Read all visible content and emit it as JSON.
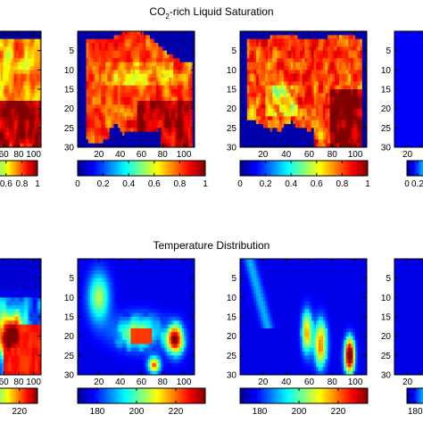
{
  "chart_data": [
    {
      "type": "heatmap",
      "title_main": "CO",
      "title_sub": "2",
      "title_rest": "-rich Liquid Saturation",
      "yticks": [
        5,
        10,
        15,
        20,
        25,
        30
      ],
      "xticks": [
        20,
        40,
        60,
        80,
        100
      ],
      "xlim": [
        0,
        110
      ],
      "ylim": [
        0,
        30
      ],
      "colorbar_ticks": [
        "0",
        "0.2",
        "0.4",
        "0.6",
        "0.8",
        "1"
      ],
      "colorbar_range": [
        0,
        1
      ]
    },
    {
      "type": "heatmap",
      "title": "Temperature Distribution",
      "yticks": [
        5,
        10,
        15,
        20,
        25,
        30
      ],
      "xticks": [
        20,
        40,
        60,
        80,
        100
      ],
      "xlim": [
        0,
        110
      ],
      "ylim": [
        0,
        30
      ],
      "colorbar_ticks": [
        "180",
        "200",
        "220"
      ],
      "colorbar_range": [
        170,
        235
      ]
    }
  ],
  "colors": {
    "background": "#0000aa",
    "hot": "#aa0000"
  }
}
